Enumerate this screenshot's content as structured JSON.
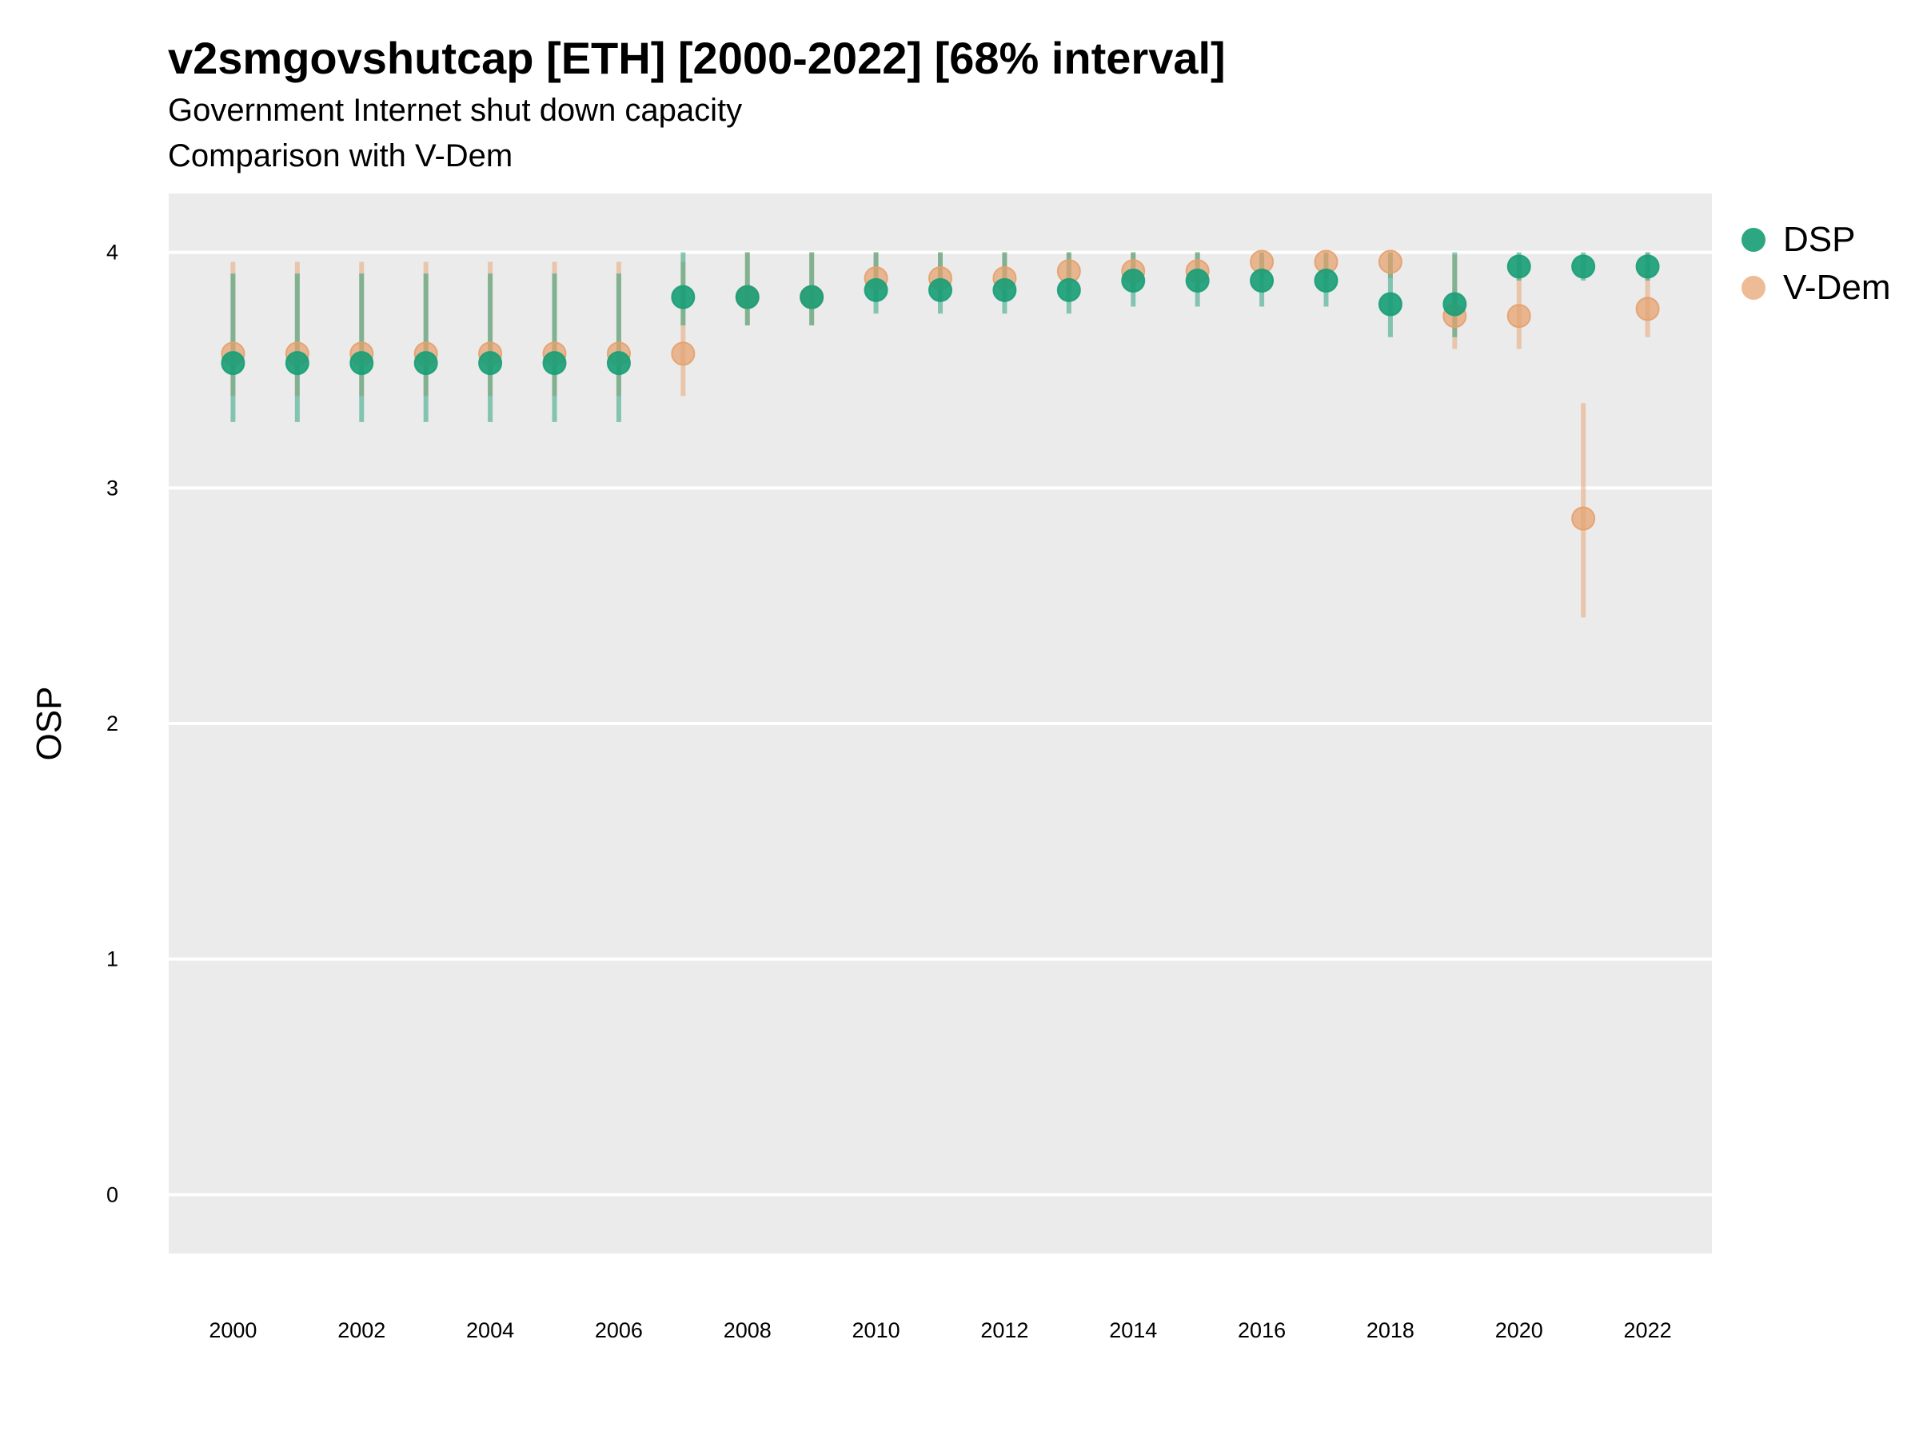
{
  "title": "v2smgovshutcap [ETH] [2000-2022] [68% interval]",
  "subtitle": "Government Internet shut down capacity",
  "subtitle2": "Comparison with V-Dem",
  "colors": {
    "dsp": "#1b9e77",
    "vdem": "#e6a06b",
    "panel": "#ebebeb",
    "grid": "#ffffff"
  },
  "legend": [
    {
      "name": "DSP",
      "color": "#1b9e77"
    },
    {
      "name": "V-Dem",
      "color": "#e6a06b"
    }
  ],
  "chart_data": {
    "type": "scatter",
    "title": "v2smgovshutcap [ETH] [2000-2022] [68% interval]",
    "xlabel": "",
    "ylabel": "OSP",
    "xlim": [
      1999,
      2023
    ],
    "ylim": [
      -0.25,
      4.25
    ],
    "x_ticks": [
      2000,
      2002,
      2004,
      2006,
      2008,
      2010,
      2012,
      2014,
      2016,
      2018,
      2020,
      2022
    ],
    "y_ticks": [
      0,
      1,
      2,
      3,
      4
    ],
    "grid": "horizontal",
    "legend_position": "right",
    "interval": "68%",
    "series": [
      {
        "name": "DSP",
        "color": "#1b9e77",
        "points": [
          {
            "x": 2000,
            "y": 3.53,
            "low": 3.28,
            "high": 3.91
          },
          {
            "x": 2001,
            "y": 3.53,
            "low": 3.28,
            "high": 3.91
          },
          {
            "x": 2002,
            "y": 3.53,
            "low": 3.28,
            "high": 3.91
          },
          {
            "x": 2003,
            "y": 3.53,
            "low": 3.28,
            "high": 3.91
          },
          {
            "x": 2004,
            "y": 3.53,
            "low": 3.28,
            "high": 3.91
          },
          {
            "x": 2005,
            "y": 3.53,
            "low": 3.28,
            "high": 3.91
          },
          {
            "x": 2006,
            "y": 3.53,
            "low": 3.28,
            "high": 3.91
          },
          {
            "x": 2007,
            "y": 3.81,
            "low": 3.69,
            "high": 4.0
          },
          {
            "x": 2008,
            "y": 3.81,
            "low": 3.69,
            "high": 4.0
          },
          {
            "x": 2009,
            "y": 3.81,
            "low": 3.69,
            "high": 4.0
          },
          {
            "x": 2010,
            "y": 3.84,
            "low": 3.74,
            "high": 4.0
          },
          {
            "x": 2011,
            "y": 3.84,
            "low": 3.74,
            "high": 4.0
          },
          {
            "x": 2012,
            "y": 3.84,
            "low": 3.74,
            "high": 4.0
          },
          {
            "x": 2013,
            "y": 3.84,
            "low": 3.74,
            "high": 4.0
          },
          {
            "x": 2014,
            "y": 3.88,
            "low": 3.77,
            "high": 4.0
          },
          {
            "x": 2015,
            "y": 3.88,
            "low": 3.77,
            "high": 4.0
          },
          {
            "x": 2016,
            "y": 3.88,
            "low": 3.77,
            "high": 4.0
          },
          {
            "x": 2017,
            "y": 3.88,
            "low": 3.77,
            "high": 4.0
          },
          {
            "x": 2018,
            "y": 3.78,
            "low": 3.64,
            "high": 4.0
          },
          {
            "x": 2019,
            "y": 3.78,
            "low": 3.64,
            "high": 4.0
          },
          {
            "x": 2020,
            "y": 3.94,
            "low": 3.88,
            "high": 4.0
          },
          {
            "x": 2021,
            "y": 3.94,
            "low": 3.88,
            "high": 4.0
          },
          {
            "x": 2022,
            "y": 3.94,
            "low": 3.88,
            "high": 4.0
          }
        ]
      },
      {
        "name": "V-Dem",
        "color": "#e6a06b",
        "points": [
          {
            "x": 2000,
            "y": 3.57,
            "low": 3.39,
            "high": 3.96
          },
          {
            "x": 2001,
            "y": 3.57,
            "low": 3.39,
            "high": 3.96
          },
          {
            "x": 2002,
            "y": 3.57,
            "low": 3.39,
            "high": 3.96
          },
          {
            "x": 2003,
            "y": 3.57,
            "low": 3.39,
            "high": 3.96
          },
          {
            "x": 2004,
            "y": 3.57,
            "low": 3.39,
            "high": 3.96
          },
          {
            "x": 2005,
            "y": 3.57,
            "low": 3.39,
            "high": 3.96
          },
          {
            "x": 2006,
            "y": 3.57,
            "low": 3.39,
            "high": 3.96
          },
          {
            "x": 2007,
            "y": 3.57,
            "low": 3.39,
            "high": 3.96
          },
          {
            "x": 2008,
            "y": 3.81,
            "low": 3.69,
            "high": 4.0
          },
          {
            "x": 2009,
            "y": 3.81,
            "low": 3.69,
            "high": 4.0
          },
          {
            "x": 2010,
            "y": 3.89,
            "low": 3.79,
            "high": 4.0
          },
          {
            "x": 2011,
            "y": 3.89,
            "low": 3.79,
            "high": 4.0
          },
          {
            "x": 2012,
            "y": 3.89,
            "low": 3.79,
            "high": 4.0
          },
          {
            "x": 2013,
            "y": 3.92,
            "low": 3.83,
            "high": 4.0
          },
          {
            "x": 2014,
            "y": 3.92,
            "low": 3.83,
            "high": 4.0
          },
          {
            "x": 2015,
            "y": 3.92,
            "low": 3.83,
            "high": 4.0
          },
          {
            "x": 2016,
            "y": 3.96,
            "low": 3.89,
            "high": 4.0
          },
          {
            "x": 2017,
            "y": 3.96,
            "low": 3.89,
            "high": 4.0
          },
          {
            "x": 2018,
            "y": 3.96,
            "low": 3.89,
            "high": 4.0
          },
          {
            "x": 2019,
            "y": 3.73,
            "low": 3.59,
            "high": 3.99
          },
          {
            "x": 2020,
            "y": 3.73,
            "low": 3.59,
            "high": 3.99
          },
          {
            "x": 2021,
            "y": 2.87,
            "low": 2.45,
            "high": 3.36
          },
          {
            "x": 2022,
            "y": 3.76,
            "low": 3.64,
            "high": 4.0
          }
        ]
      }
    ]
  }
}
